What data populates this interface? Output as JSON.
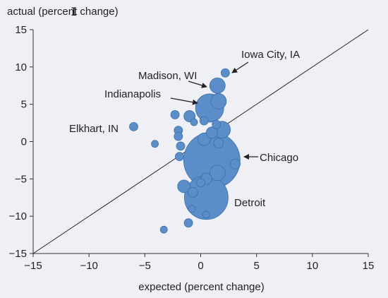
{
  "chart_data": {
    "type": "scatter",
    "title": "",
    "xlabel": "expected (percent change)",
    "ylabel": "actual (percent change)",
    "xlim": [
      -15,
      15
    ],
    "ylim": [
      -15,
      15
    ],
    "xticks": [
      -15,
      -10,
      -5,
      0,
      5,
      10,
      15
    ],
    "yticks": [
      -15,
      -10,
      -5,
      0,
      5,
      10,
      15
    ],
    "xtick_labels": [
      "−15",
      "−10",
      "−5",
      "0",
      "5",
      "10",
      "15"
    ],
    "ytick_labels": [
      "−15",
      "−10",
      "−5",
      "0",
      "5",
      "10",
      "15"
    ],
    "reference_line": {
      "from": [
        -15,
        -15
      ],
      "to": [
        15,
        15
      ]
    },
    "grid": false,
    "bubble_color": "#5b8ec9",
    "bubble_edge_color": "#3d6fa8",
    "points": [
      {
        "x": -6.0,
        "y": 2.0,
        "r": 6,
        "label": "Elkhart, IN"
      },
      {
        "x": -4.1,
        "y": -0.3,
        "r": 5
      },
      {
        "x": -3.3,
        "y": -11.8,
        "r": 5
      },
      {
        "x": -2.3,
        "y": 3.6,
        "r": 6
      },
      {
        "x": -2.0,
        "y": 1.5,
        "r": 6
      },
      {
        "x": -2.0,
        "y": 0.7,
        "r": 6
      },
      {
        "x": -1.8,
        "y": -0.6,
        "r": 6
      },
      {
        "x": -1.9,
        "y": -2.0,
        "r": 6
      },
      {
        "x": -1.5,
        "y": -6.0,
        "r": 9
      },
      {
        "x": -1.0,
        "y": 3.4,
        "r": 8
      },
      {
        "x": -1.1,
        "y": -10.9,
        "r": 6
      },
      {
        "x": -0.8,
        "y": -9.0,
        "r": 5
      },
      {
        "x": -0.7,
        "y": -6.8,
        "r": 7
      },
      {
        "x": -0.6,
        "y": 2.6,
        "r": 5
      },
      {
        "x": 0.3,
        "y": 2.8,
        "r": 6
      },
      {
        "x": 0.3,
        "y": 0.3,
        "r": 9
      },
      {
        "x": 0.8,
        "y": 4.5,
        "r": 20,
        "label": "Indianapolis"
      },
      {
        "x": 1.0,
        "y": 1.2,
        "r": 8
      },
      {
        "x": 1.0,
        "y": -2.5,
        "r": 40,
        "label": "Chicago"
      },
      {
        "x": 0.5,
        "y": -5.0,
        "r": 8
      },
      {
        "x": 0.0,
        "y": -5.5,
        "r": 6
      },
      {
        "x": 0.5,
        "y": -9.8,
        "r": 5
      },
      {
        "x": 1.4,
        "y": 2.3,
        "r": 6
      },
      {
        "x": 1.6,
        "y": 5.4,
        "r": 11
      },
      {
        "x": 1.5,
        "y": 7.5,
        "r": 11,
        "label": "Madison, WI"
      },
      {
        "x": 1.9,
        "y": 1.6,
        "r": 12
      },
      {
        "x": 1.6,
        "y": -0.2,
        "r": 7
      },
      {
        "x": 1.5,
        "y": -4.2,
        "r": 11
      },
      {
        "x": 2.2,
        "y": 9.2,
        "r": 6,
        "label": "Iowa City, IA"
      },
      {
        "x": 3.1,
        "y": -3.0,
        "r": 7
      },
      {
        "x": 0.5,
        "y": -7.5,
        "r": 31,
        "label": "Detroit"
      }
    ],
    "annotations": [
      {
        "text": "Iowa City, IA",
        "target": [
          2.2,
          9.2
        ],
        "arrow": true
      },
      {
        "text": "Madison, WI",
        "target": [
          1.5,
          7.5
        ],
        "arrow": true
      },
      {
        "text": "Indianapolis",
        "target": [
          0.8,
          5.5
        ],
        "arrow": true
      },
      {
        "text": "Elkhart, IN",
        "target": [
          -6.0,
          2.0
        ],
        "arrow": false
      },
      {
        "text": "Chicago",
        "target": [
          4.6,
          -1.8
        ],
        "arrow": true
      },
      {
        "text": "Detroit",
        "target": [
          3.0,
          -7.8
        ],
        "arrow": false
      }
    ]
  }
}
